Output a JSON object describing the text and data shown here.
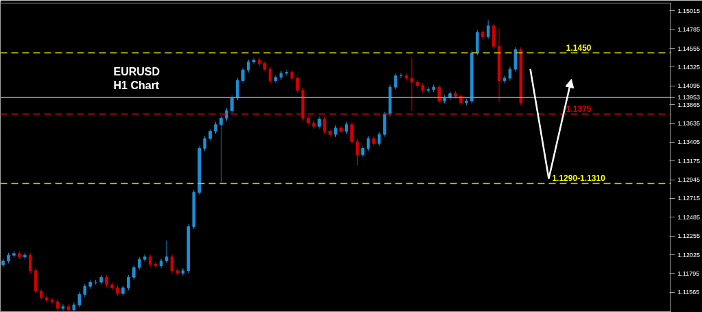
{
  "chart_data": {
    "type": "candlestick",
    "categories": [
      null,
      null,
      null,
      null,
      null,
      null,
      null,
      null,
      null,
      null,
      null,
      null,
      null,
      null,
      null,
      null,
      null,
      null,
      null,
      null,
      null,
      null,
      null,
      null,
      null,
      null,
      null,
      null,
      null,
      null,
      null,
      null,
      null,
      null,
      null,
      null,
      null,
      null,
      null,
      null,
      null,
      null,
      null,
      null,
      null,
      null,
      null,
      null,
      null,
      null,
      null,
      null,
      null,
      null,
      null,
      null,
      null,
      null,
      null,
      null,
      null,
      null,
      null,
      null,
      null,
      null,
      null,
      null,
      null,
      null,
      null,
      null,
      null,
      null,
      null,
      null,
      null,
      null,
      null,
      null,
      null,
      null,
      null,
      null,
      null,
      null,
      null,
      null,
      null,
      null,
      null,
      null,
      null,
      null,
      null,
      null,
      null,
      null,
      null,
      null,
      null,
      null,
      null,
      null,
      null,
      null,
      null,
      null,
      null,
      null,
      null,
      null,
      null,
      null,
      null,
      null,
      null,
      null,
      null,
      null,
      null,
      null,
      null
    ],
    "ohlc": [
      [
        1.119,
        1.1198,
        1.1187,
        1.1195
      ],
      [
        1.1195,
        1.1205,
        1.1192,
        1.1202
      ],
      [
        1.1202,
        1.1207,
        1.1199,
        1.1204
      ],
      [
        1.1204,
        1.1207,
        1.1197,
        1.12
      ],
      [
        1.12,
        1.1205,
        1.1197,
        1.1202
      ],
      [
        1.1202,
        1.1205,
        1.118,
        1.1183
      ],
      [
        1.1183,
        1.1186,
        1.1155,
        1.1158
      ],
      [
        1.1158,
        1.1161,
        1.1147,
        1.115
      ],
      [
        1.115,
        1.1153,
        1.1144,
        1.1147
      ],
      [
        1.1147,
        1.115,
        1.1142,
        1.1145
      ],
      [
        1.1145,
        1.1148,
        1.1134,
        1.1137
      ],
      [
        1.1137,
        1.1142,
        1.1134,
        1.1139
      ],
      [
        1.1139,
        1.1142,
        1.1133,
        1.1135
      ],
      [
        1.1135,
        1.1144,
        1.1133,
        1.1141
      ],
      [
        1.1141,
        1.1157,
        1.1138,
        1.1154
      ],
      [
        1.1154,
        1.1167,
        1.1151,
        1.1164
      ],
      [
        1.1164,
        1.1172,
        1.1161,
        1.1169
      ],
      [
        1.1169,
        1.1172,
        1.1166,
        1.1169
      ],
      [
        1.1169,
        1.1178,
        1.1166,
        1.1175
      ],
      [
        1.1175,
        1.1178,
        1.1163,
        1.1166
      ],
      [
        1.1166,
        1.1169,
        1.1159,
        1.1162
      ],
      [
        1.1162,
        1.1165,
        1.1152,
        1.1155
      ],
      [
        1.1155,
        1.1165,
        1.1152,
        1.1162
      ],
      [
        1.1162,
        1.1178,
        1.1159,
        1.1175
      ],
      [
        1.1175,
        1.119,
        1.1172,
        1.1187
      ],
      [
        1.1187,
        1.12,
        1.1184,
        1.1197
      ],
      [
        1.1197,
        1.1203,
        1.1194,
        1.12
      ],
      [
        1.12,
        1.1203,
        1.1188,
        1.1191
      ],
      [
        1.1191,
        1.1194,
        1.1186,
        1.1189
      ],
      [
        1.1189,
        1.1198,
        1.1186,
        1.1195
      ],
      [
        1.1195,
        1.122,
        1.1192,
        1.12
      ],
      [
        1.12,
        1.1203,
        1.118,
        1.1183
      ],
      [
        1.1183,
        1.1186,
        1.1177,
        1.118
      ],
      [
        1.118,
        1.1186,
        1.1177,
        1.1183
      ],
      [
        1.1183,
        1.124,
        1.118,
        1.1237
      ],
      [
        1.1237,
        1.1282,
        1.1234,
        1.1279
      ],
      [
        1.1279,
        1.1336,
        1.1276,
        1.1333
      ],
      [
        1.1333,
        1.1348,
        1.133,
        1.1345
      ],
      [
        1.1345,
        1.1357,
        1.1342,
        1.1354
      ],
      [
        1.1354,
        1.1365,
        1.1351,
        1.1362
      ],
      [
        1.1362,
        1.1373,
        1.1291,
        1.137
      ],
      [
        1.137,
        1.1382,
        1.1367,
        1.1379
      ],
      [
        1.1379,
        1.1398,
        1.1376,
        1.1395
      ],
      [
        1.1395,
        1.1419,
        1.1392,
        1.1416
      ],
      [
        1.1416,
        1.1432,
        1.1413,
        1.1429
      ],
      [
        1.1429,
        1.1442,
        1.1426,
        1.1439
      ],
      [
        1.1439,
        1.1444,
        1.1436,
        1.1441
      ],
      [
        1.1441,
        1.1444,
        1.1434,
        1.1437
      ],
      [
        1.1437,
        1.144,
        1.1427,
        1.143
      ],
      [
        1.143,
        1.1433,
        1.1413,
        1.1416
      ],
      [
        1.1416,
        1.1423,
        1.1413,
        1.142
      ],
      [
        1.142,
        1.1428,
        1.1417,
        1.1425
      ],
      [
        1.1425,
        1.1429,
        1.1422,
        1.1426
      ],
      [
        1.1426,
        1.1429,
        1.1416,
        1.1419
      ],
      [
        1.1419,
        1.1422,
        1.1401,
        1.1404
      ],
      [
        1.1404,
        1.1407,
        1.1367,
        1.137
      ],
      [
        1.137,
        1.1373,
        1.1361,
        1.1364
      ],
      [
        1.1364,
        1.1367,
        1.1357,
        1.136
      ],
      [
        1.136,
        1.1372,
        1.1357,
        1.1369
      ],
      [
        1.1369,
        1.1372,
        1.1351,
        1.1354
      ],
      [
        1.1354,
        1.1357,
        1.1347,
        1.135
      ],
      [
        1.135,
        1.1361,
        1.1347,
        1.1358
      ],
      [
        1.1358,
        1.1361,
        1.1351,
        1.1354
      ],
      [
        1.1354,
        1.1365,
        1.1351,
        1.1362
      ],
      [
        1.1362,
        1.1365,
        1.1338,
        1.1341
      ],
      [
        1.1341,
        1.1344,
        1.1312,
        1.1325
      ],
      [
        1.1325,
        1.1336,
        1.1322,
        1.1333
      ],
      [
        1.1333,
        1.1348,
        1.133,
        1.1345
      ],
      [
        1.1345,
        1.1348,
        1.1336,
        1.1339
      ],
      [
        1.1339,
        1.1353,
        1.1336,
        1.135
      ],
      [
        1.135,
        1.1378,
        1.1347,
        1.1375
      ],
      [
        1.1375,
        1.1411,
        1.1372,
        1.1408
      ],
      [
        1.1408,
        1.1425,
        1.1405,
        1.1422
      ],
      [
        1.1422,
        1.1425,
        1.1419,
        1.1422
      ],
      [
        1.1422,
        1.1425,
        1.1416,
        1.1419
      ],
      [
        1.1419,
        1.1444,
        1.1379,
        1.1414
      ],
      [
        1.1414,
        1.1417,
        1.1407,
        1.141
      ],
      [
        1.141,
        1.1413,
        1.1401,
        1.1404
      ],
      [
        1.1404,
        1.1408,
        1.1401,
        1.1405
      ],
      [
        1.1405,
        1.1411,
        1.1402,
        1.1408
      ],
      [
        1.1408,
        1.1411,
        1.1388,
        1.1391
      ],
      [
        1.1391,
        1.1398,
        1.1388,
        1.1395
      ],
      [
        1.1395,
        1.1403,
        1.1392,
        1.14
      ],
      [
        1.14,
        1.1403,
        1.1394,
        1.1397
      ],
      [
        1.1397,
        1.14,
        1.1386,
        1.1389
      ],
      [
        1.1389,
        1.1394,
        1.1386,
        1.1391
      ],
      [
        1.1391,
        1.1453,
        1.1388,
        1.145
      ],
      [
        1.145,
        1.1478,
        1.1447,
        1.1475
      ],
      [
        1.1475,
        1.1478,
        1.1467,
        1.147
      ],
      [
        1.147,
        1.149,
        1.1467,
        1.1483
      ],
      [
        1.1483,
        1.1486,
        1.1455,
        1.1458
      ],
      [
        1.1458,
        1.148,
        1.139,
        1.1416
      ],
      [
        1.1416,
        1.1422,
        1.1413,
        1.1419
      ],
      [
        1.1419,
        1.1433,
        1.1416,
        1.143
      ],
      [
        1.143,
        1.1457,
        1.1427,
        1.1454
      ],
      [
        1.1454,
        1.1457,
        1.1386,
        1.1389
      ],
      null,
      null,
      null,
      null,
      null,
      null,
      null,
      null,
      null,
      null,
      null,
      null,
      null,
      null,
      null,
      null,
      null,
      null,
      null,
      null,
      null,
      null,
      null,
      null,
      null,
      null,
      null
    ],
    "colors": [
      "#1e8fd6",
      "#1e8fd6",
      "#1e8fd6",
      "#d40000",
      "#1e8fd6",
      "#d40000",
      "#d40000",
      "#d40000",
      "#d40000",
      "#d40000",
      "#d40000",
      "#1e8fd6",
      "#d40000",
      "#1e8fd6",
      "#1e8fd6",
      "#1e8fd6",
      "#1e8fd6",
      "#1e8fd6",
      "#1e8fd6",
      "#d40000",
      "#d40000",
      "#d40000",
      "#1e8fd6",
      "#1e8fd6",
      "#1e8fd6",
      "#1e8fd6",
      "#1e8fd6",
      "#d40000",
      "#d40000",
      "#1e8fd6",
      "#1e8fd6",
      "#d40000",
      "#d40000",
      "#1e8fd6",
      "#1e8fd6",
      "#1e8fd6",
      "#1e8fd6",
      "#1e8fd6",
      "#1e8fd6",
      "#1e8fd6",
      "#1e8fd6",
      "#1e8fd6",
      "#1e8fd6",
      "#1e8fd6",
      "#1e8fd6",
      "#1e8fd6",
      "#1e8fd6",
      "#d40000",
      "#d40000",
      "#d40000",
      "#1e8fd6",
      "#1e8fd6",
      "#1e8fd6",
      "#d40000",
      "#d40000",
      "#d40000",
      "#d40000",
      "#d40000",
      "#1e8fd6",
      "#d40000",
      "#d40000",
      "#1e8fd6",
      "#d40000",
      "#1e8fd6",
      "#d40000",
      "#d40000",
      "#1e8fd6",
      "#1e8fd6",
      "#d40000",
      "#1e8fd6",
      "#1e8fd6",
      "#1e8fd6",
      "#1e8fd6",
      "#1e8fd6",
      "#d40000",
      "#d40000",
      "#d40000",
      "#d40000",
      "#1e8fd6",
      "#1e8fd6",
      "#d40000",
      "#1e8fd6",
      "#1e8fd6",
      "#d40000",
      "#d40000",
      "#1e8fd6",
      "#1e8fd6",
      "#1e8fd6",
      "#d40000",
      "#1e8fd6",
      "#d40000",
      "#d40000",
      "#1e8fd6",
      "#1e8fd6",
      "#1e8fd6",
      "#d40000",
      null,
      null,
      null,
      null,
      null,
      null,
      null,
      null,
      null,
      null,
      null,
      null,
      null,
      null,
      null,
      null,
      null,
      null,
      null,
      null,
      null,
      null,
      null,
      null,
      null,
      null,
      null
    ],
    "ylim": [
      1.1132,
      1.1511
    ],
    "yticks": [
      {
        "value": 1.15015,
        "label": "1.15015"
      },
      {
        "value": 1.14785,
        "label": "1.14785"
      },
      {
        "value": 1.14555,
        "label": "1.14555"
      },
      {
        "value": 1.14325,
        "label": "1.14325"
      },
      {
        "value": 1.14095,
        "label": "1.14095"
      },
      {
        "value": 1.13953,
        "label": "1.13953"
      },
      {
        "value": 1.13865,
        "label": "1.13865"
      },
      {
        "value": 1.13635,
        "label": "1.13635"
      },
      {
        "value": 1.13405,
        "label": "1.13405"
      },
      {
        "value": 1.13175,
        "label": "1.13175"
      },
      {
        "value": 1.12945,
        "label": "1.12945"
      },
      {
        "value": 1.12715,
        "label": "1.12715"
      },
      {
        "value": 1.12485,
        "label": "1.12485"
      },
      {
        "value": 1.12255,
        "label": "1.12255"
      },
      {
        "value": 1.12025,
        "label": "1.12025"
      },
      {
        "value": 1.11795,
        "label": "1.11795"
      },
      {
        "value": 1.11565,
        "label": "1.11565"
      }
    ],
    "tick_labels": "y",
    "grid": false,
    "ref_lines": [
      {
        "axis": "y",
        "value": 1.145,
        "label": "1.1450",
        "color": "#c8c800",
        "line_style": "dashed"
      },
      {
        "axis": "y",
        "value": 1.1375,
        "label": "1.1375",
        "color": "#e00000",
        "line_style": "dashed"
      },
      {
        "axis": "y",
        "value": 1.129,
        "label": "1.1290-1.1310",
        "color": "#c8c800",
        "line_style": "dashed"
      },
      {
        "axis": "y",
        "value": 1.13953,
        "label": null,
        "color": "#8c96a0",
        "line_style": "solid"
      }
    ],
    "annotations": [
      "EURUSD\nH1 Chart"
    ]
  }
}
